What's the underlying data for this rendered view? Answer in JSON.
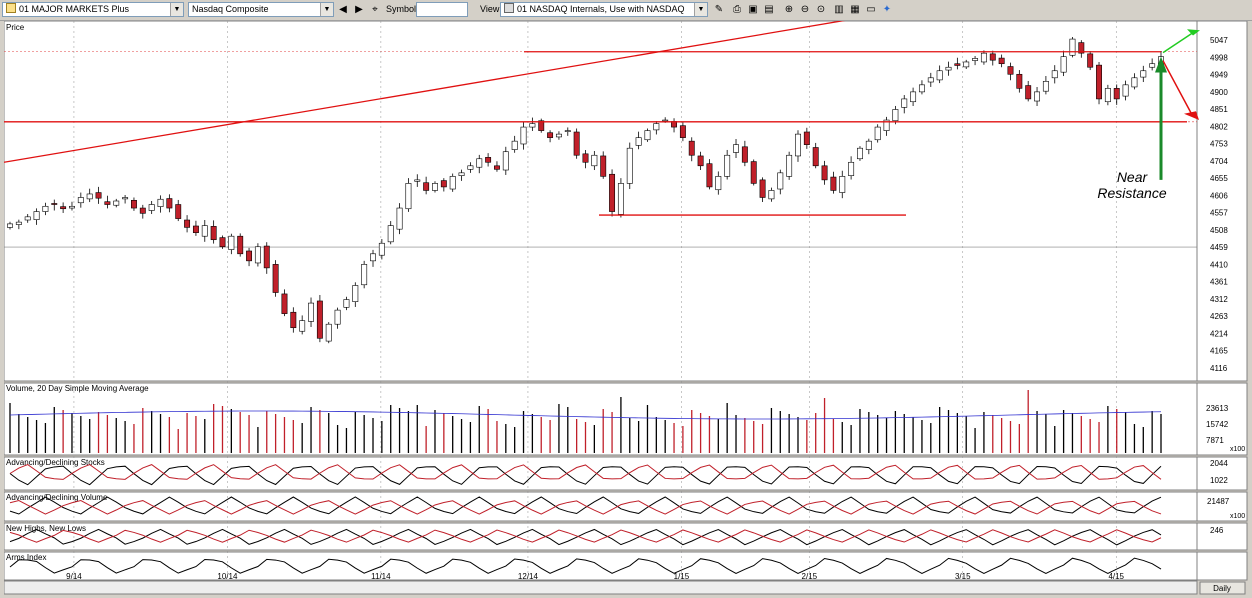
{
  "toolbar": {
    "list_combo": "01 MAJOR MARKETS Plus",
    "symbol_combo": "Nasdaq Composite",
    "symbol_label": "Symbol:",
    "symbol_value": "",
    "view_label": "View:",
    "view_combo": "01 NASDAQ Internals, Use with NASDAQ",
    "icons": [
      "prev-arrow-icon",
      "next-arrow-icon",
      "binoculars-icon",
      "chart-edit-icon",
      "print-icon",
      "save-icon",
      "clipboard-icon",
      "zoom-in-icon",
      "zoom-out-icon",
      "zoom-reset-icon",
      "grid-icon",
      "bars-icon",
      "window-icon",
      "paint-icon"
    ]
  },
  "annotation": {
    "line1": "Near",
    "line2": "Resistance"
  },
  "periodicity": "Daily",
  "colors": {
    "up": "#ffffff",
    "down": "#c0202a",
    "trend": "#e01010",
    "green_arrow": "#1a8a2a",
    "bright_green": "#22cc22",
    "volume_avg": "#3030d0"
  },
  "chart_data": [
    {
      "type": "candlestick",
      "title": "Price",
      "ylim": [
        4090,
        5090
      ],
      "ytick_labels": [
        "5047",
        "4998",
        "4949",
        "4900",
        "4851",
        "4802",
        "4753",
        "4704",
        "4655",
        "4606",
        "4557",
        "4508",
        "4459",
        "4410",
        "4361",
        "4312",
        "4263",
        "4214",
        "4165",
        "4116"
      ],
      "x_labels": [
        "9/14",
        "10/14",
        "11/14",
        "12/14",
        "1/15",
        "2/15",
        "3/15",
        "4/15"
      ],
      "close_series": [
        4525,
        4530,
        4545,
        4560,
        4575,
        4580,
        4568,
        4575,
        4600,
        4610,
        4598,
        4580,
        4590,
        4600,
        4570,
        4555,
        4580,
        4595,
        4570,
        4540,
        4515,
        4500,
        4520,
        4480,
        4460,
        4490,
        4440,
        4420,
        4460,
        4400,
        4330,
        4270,
        4230,
        4250,
        4300,
        4200,
        4240,
        4280,
        4310,
        4350,
        4410,
        4440,
        4470,
        4520,
        4570,
        4640,
        4650,
        4620,
        4640,
        4630,
        4660,
        4670,
        4690,
        4710,
        4700,
        4680,
        4730,
        4760,
        4800,
        4810,
        4790,
        4770,
        4780,
        4790,
        4720,
        4700,
        4720,
        4660,
        4560,
        4640,
        4740,
        4770,
        4790,
        4810,
        4820,
        4800,
        4770,
        4720,
        4690,
        4630,
        4660,
        4720,
        4750,
        4700,
        4640,
        4600,
        4620,
        4670,
        4720,
        4780,
        4750,
        4690,
        4650,
        4620,
        4660,
        4700,
        4740,
        4760,
        4800,
        4820,
        4850,
        4880,
        4900,
        4920,
        4940,
        4960,
        4970,
        4975,
        4985,
        4995,
        5010,
        4990,
        4980,
        4950,
        4910,
        4880,
        4900,
        4930,
        4960,
        5000,
        5050,
        5010,
        4970,
        4880,
        4910,
        4880,
        4920,
        4940,
        4960,
        4980,
        5000
      ],
      "horizontal_levels": [
        5014,
        4815,
        4550
      ],
      "trendline": {
        "from": [
          0,
          4700
        ],
        "to": [
          118,
          5140
        ]
      }
    },
    {
      "type": "bar",
      "title": "Volume, 20 Day Simple Moving Average",
      "ytick_labels": [
        "23613",
        "15742",
        "7871"
      ],
      "unit_note": "x100"
    },
    {
      "type": "line",
      "title": "Advancing/Declining Stocks",
      "ytick_labels": [
        "2044",
        "1022"
      ]
    },
    {
      "type": "line",
      "title": "Advancing/Declining Volume",
      "ytick_labels": [
        "21487"
      ],
      "unit_note": "x100"
    },
    {
      "type": "line",
      "title": "New Highs, New Lows",
      "ytick_labels": [
        "246"
      ]
    },
    {
      "type": "line",
      "title": "Arms Index",
      "ytick_labels": []
    }
  ]
}
